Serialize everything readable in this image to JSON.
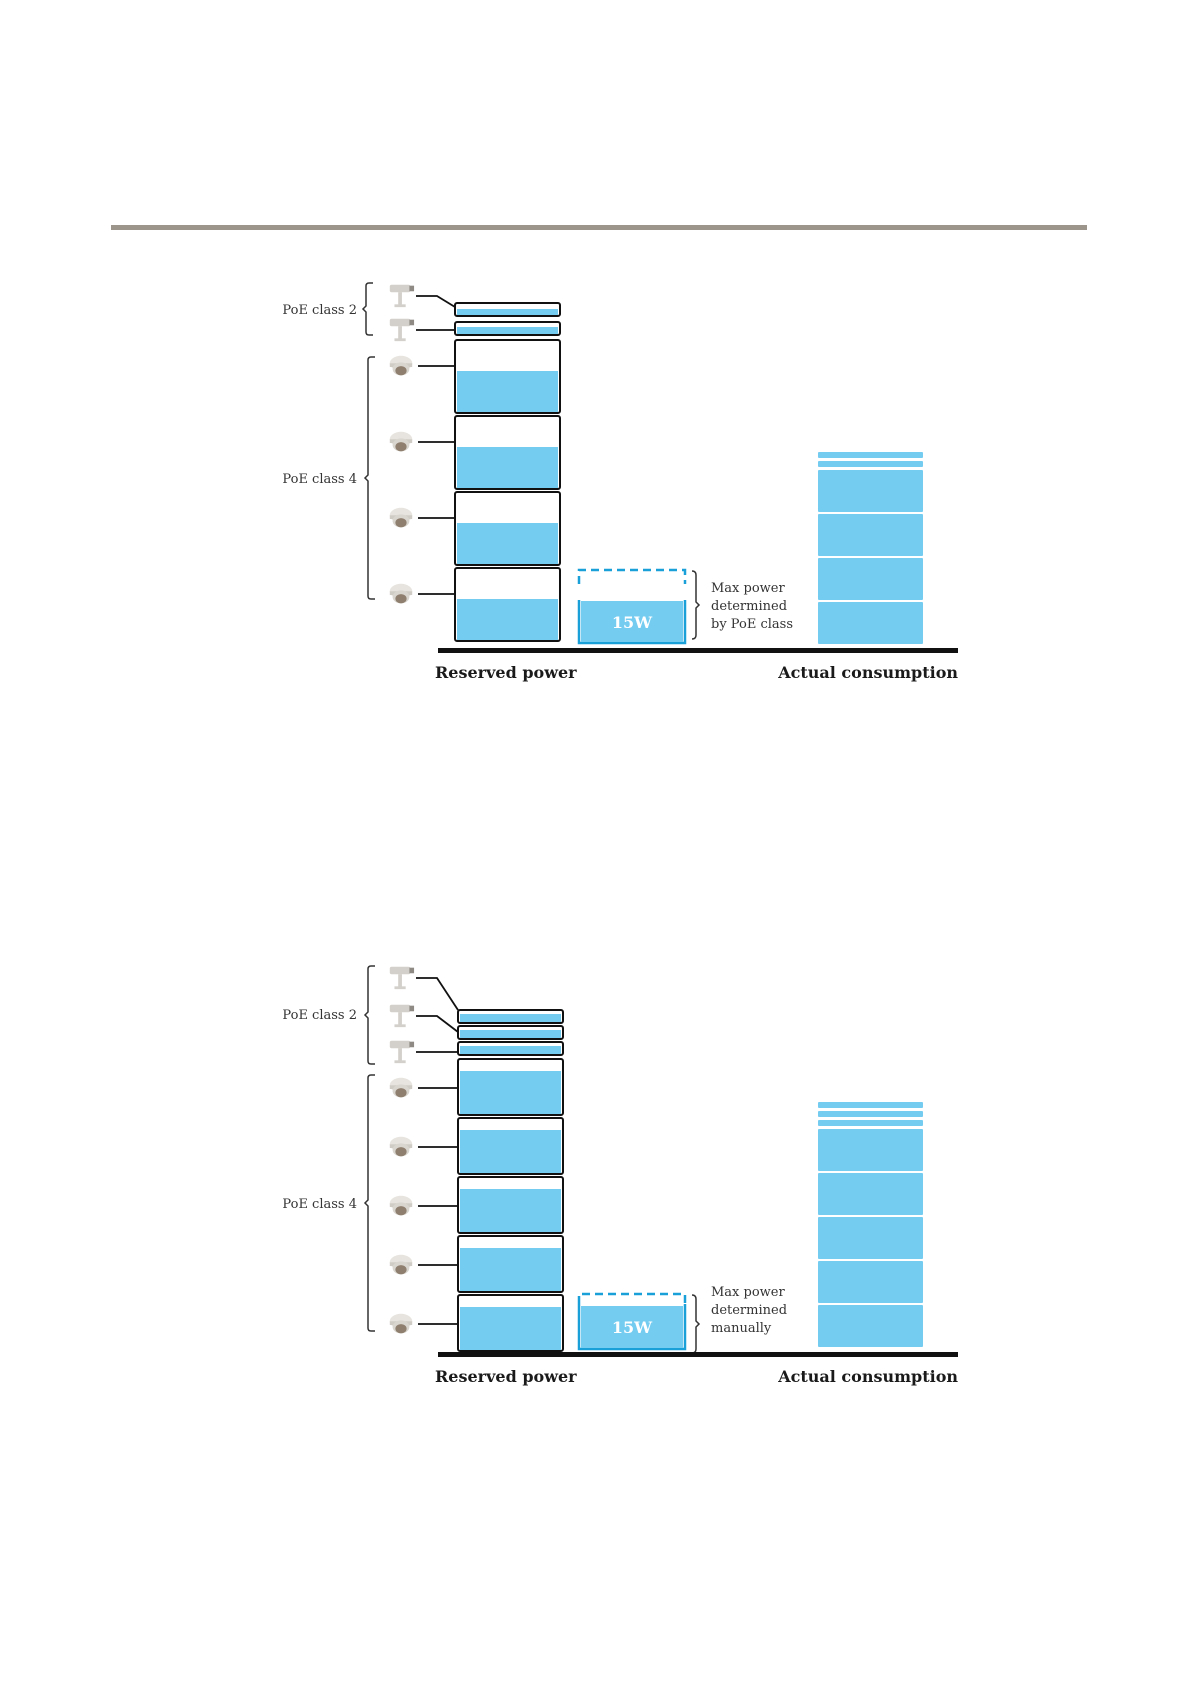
{
  "colors": {
    "fill_blue": "#74ccf1",
    "border_blue": "#1aa0d8",
    "block_outline": "#111111",
    "top_rule": "#9c958c",
    "baseline": "#111111",
    "device_gray": "#c9c5bf"
  },
  "diagrams": [
    {
      "groups": [
        {
          "label": "PoE class 2",
          "device_icon": "bullet-camera-icon",
          "count": 2
        },
        {
          "label": "PoE class 4",
          "device_icon": "dome-camera-icon",
          "count": 4
        }
      ],
      "unallocated_label": "15W",
      "note_lines": [
        "Max power",
        "determined",
        "by PoE class"
      ],
      "x_labels": [
        "Reserved power",
        "Actual consumption"
      ]
    },
    {
      "groups": [
        {
          "label": "PoE class 2",
          "device_icon": "bullet-camera-icon",
          "count": 3
        },
        {
          "label": "PoE class 4",
          "device_icon": "dome-camera-icon",
          "count": 5
        }
      ],
      "unallocated_label": "15W",
      "note_lines": [
        "Max power",
        "determined",
        "manually"
      ],
      "x_labels": [
        "Reserved power",
        "Actual consumption"
      ]
    }
  ]
}
